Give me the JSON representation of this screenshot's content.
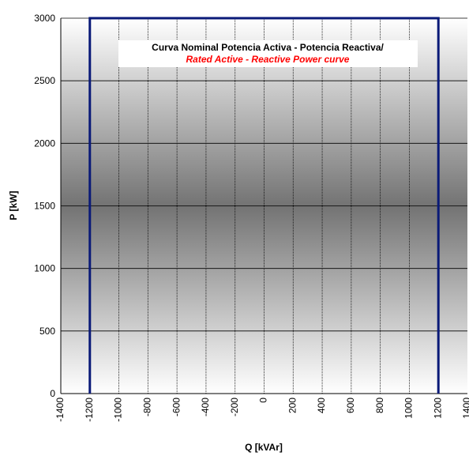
{
  "chart_data": {
    "type": "line",
    "title": "Curva Nominal Potencia Activa - Potencia Reactiva/",
    "subtitle": "Rated Active - Reactive Power curve",
    "xlabel": "Q [kVAr]",
    "ylabel": "P [kW]",
    "xlim": [
      -1400,
      1400
    ],
    "ylim": [
      0,
      3000
    ],
    "x_ticks": [
      "-1400",
      "-1200",
      "-1000",
      "-800",
      "-600",
      "-400",
      "-200",
      "0",
      "200",
      "400",
      "600",
      "800",
      "1000",
      "1200",
      "1400"
    ],
    "y_ticks": [
      "0",
      "500",
      "1000",
      "1500",
      "2000",
      "2500",
      "3000"
    ],
    "grid": true,
    "series": [
      {
        "x": [
          -1200,
          -1200,
          1200,
          1200
        ],
        "y": [
          0,
          3000,
          3000,
          0
        ]
      }
    ],
    "colors": {
      "line": "#0a1a78",
      "subtitle": "#ff0000"
    }
  }
}
